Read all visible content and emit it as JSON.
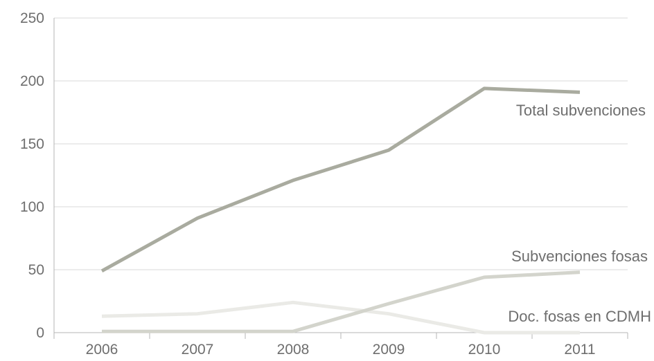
{
  "chart_data": {
    "type": "line",
    "title": "",
    "xlabel": "",
    "ylabel": "",
    "categories": [
      "2006",
      "2007",
      "2008",
      "2009",
      "2010",
      "2011"
    ],
    "ylim": [
      0,
      250
    ],
    "yticks": [
      "0",
      "50",
      "100",
      "150",
      "200",
      "250"
    ],
    "grid": true,
    "legend": "inline labels near line ends",
    "series": [
      {
        "name": "Total subvenciones",
        "values": [
          49,
          91,
          121,
          145,
          194,
          191
        ],
        "color": "#a9ab9f"
      },
      {
        "name": "Subvenciones fosas",
        "values": [
          1,
          1,
          1,
          23,
          44,
          48
        ],
        "color": "#d3d4cc"
      },
      {
        "name": "Doc. fosas en CDMH",
        "values": [
          13,
          15,
          24,
          15,
          0,
          0
        ],
        "color": "#eaeae6"
      }
    ]
  }
}
